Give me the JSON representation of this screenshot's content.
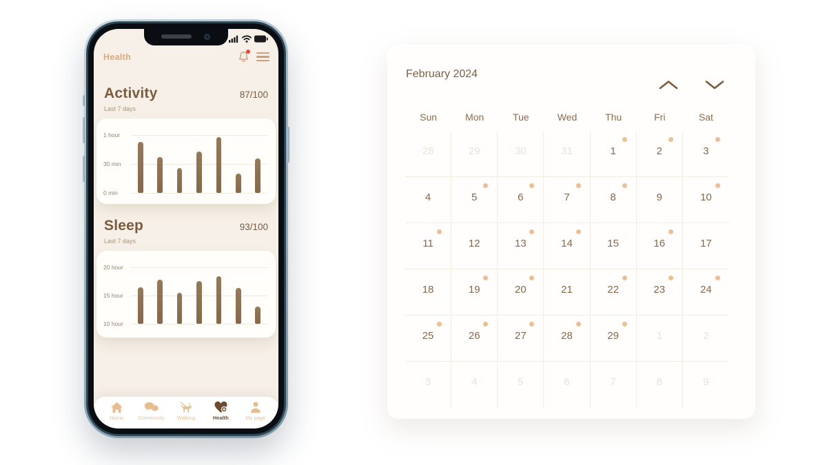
{
  "colors": {
    "accent_brown": "#7b5b3c",
    "accent_tan": "#d9a97a",
    "bar_brown": "#8c6f50",
    "event_dot": "#ecbf94",
    "notification_red": "#e8473c",
    "screen_bg": "#f6f0e8"
  },
  "phone": {
    "header": {
      "title": "Health",
      "icons": [
        "bell-icon",
        "menu-icon"
      ],
      "bell_has_notification": true
    },
    "status_icons": [
      "signal-icon",
      "wifi-icon",
      "battery-icon"
    ],
    "nav": [
      {
        "label": "Home",
        "icon": "home-icon",
        "active": false
      },
      {
        "label": "Community",
        "icon": "community-icon",
        "active": false
      },
      {
        "label": "Walking",
        "icon": "walking-icon",
        "active": false
      },
      {
        "label": "Health",
        "icon": "health-icon",
        "active": true
      },
      {
        "label": "My page",
        "icon": "my-page-icon",
        "active": false
      }
    ]
  },
  "chart_data": [
    {
      "type": "bar",
      "title": "Activity",
      "score": "87/100",
      "subtitle": "Last 7 days",
      "unit": "minutes",
      "values": [
        53,
        37,
        26,
        43,
        58,
        20,
        36
      ],
      "yticks": [
        {
          "label": "1 hour",
          "value": 60
        },
        {
          "label": "30 min",
          "value": 30
        },
        {
          "label": "0 min",
          "value": 0
        }
      ],
      "ylim": [
        0,
        60
      ],
      "grid": true,
      "x_labels": []
    },
    {
      "type": "bar",
      "title": "Sleep",
      "score": "93/100",
      "subtitle": "Last 7 days",
      "unit": "hours",
      "values": [
        16.5,
        17.8,
        15.5,
        17.6,
        18.4,
        16.3,
        13
      ],
      "yticks": [
        {
          "label": "20 hour",
          "value": 20
        },
        {
          "label": "15 hour",
          "value": 15
        },
        {
          "label": "10 hour",
          "value": 10
        }
      ],
      "ylim": [
        10,
        20
      ],
      "grid": true,
      "x_labels": []
    }
  ],
  "calendar": {
    "title": "February 2024",
    "nav": {
      "prev_icon": "chevron-up-icon",
      "next_icon": "chevron-down-icon"
    },
    "day_headers": [
      "Sun",
      "Mon",
      "Tue",
      "Wed",
      "Thu",
      "Fri",
      "Sat"
    ],
    "weeks": [
      [
        {
          "day": 28,
          "outside": true
        },
        {
          "day": 29,
          "outside": true
        },
        {
          "day": 30,
          "outside": true
        },
        {
          "day": 31,
          "outside": true
        },
        {
          "day": 1,
          "dot": true
        },
        {
          "day": 2,
          "dot": true
        },
        {
          "day": 3,
          "dot": true
        }
      ],
      [
        {
          "day": 4
        },
        {
          "day": 5,
          "dot": true
        },
        {
          "day": 6,
          "dot": true
        },
        {
          "day": 7,
          "dot": true
        },
        {
          "day": 8,
          "dot": true
        },
        {
          "day": 9
        },
        {
          "day": 10,
          "dot": true
        }
      ],
      [
        {
          "day": 11,
          "dot": true
        },
        {
          "day": 12
        },
        {
          "day": 13,
          "dot": true
        },
        {
          "day": 14,
          "dot": true
        },
        {
          "day": 15
        },
        {
          "day": 16,
          "dot": true
        },
        {
          "day": 17
        }
      ],
      [
        {
          "day": 18
        },
        {
          "day": 19,
          "dot": true
        },
        {
          "day": 20,
          "dot": true
        },
        {
          "day": 21
        },
        {
          "day": 22,
          "dot": true
        },
        {
          "day": 23,
          "dot": true
        },
        {
          "day": 24,
          "dot": true
        }
      ],
      [
        {
          "day": 25,
          "dot": true
        },
        {
          "day": 26,
          "dot": true
        },
        {
          "day": 27,
          "dot": true
        },
        {
          "day": 28,
          "dot": true
        },
        {
          "day": 29,
          "dot": true
        },
        {
          "day": 1,
          "outside": true
        },
        {
          "day": 2,
          "outside": true
        }
      ],
      [
        {
          "day": 3,
          "outside": true
        },
        {
          "day": 4,
          "outside": true
        },
        {
          "day": 5,
          "outside": true
        },
        {
          "day": 6,
          "outside": true
        },
        {
          "day": 7,
          "outside": true
        },
        {
          "day": 8,
          "outside": true
        },
        {
          "day": 9,
          "outside": true
        }
      ]
    ]
  }
}
